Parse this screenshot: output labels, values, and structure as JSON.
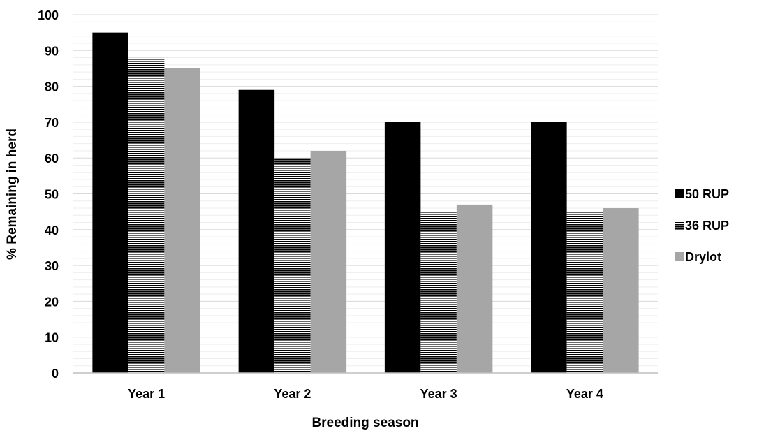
{
  "chart_data": {
    "type": "bar",
    "title": "",
    "xlabel": "Breeding season",
    "ylabel": "% Remaining in herd",
    "categories": [
      "Year 1",
      "Year 2",
      "Year 3",
      "Year 4"
    ],
    "ylim": [
      0,
      100
    ],
    "ytick_step": 10,
    "minor_grid_step": 2,
    "grid": true,
    "legend_position": "right",
    "series": [
      {
        "name": "50 RUP",
        "values": [
          95,
          79,
          70,
          70
        ],
        "color": "#000000",
        "pattern": "solid"
      },
      {
        "name": "36 RUP",
        "values": [
          88,
          60,
          45,
          45
        ],
        "color": "#000000",
        "pattern": "horizontal-lines"
      },
      {
        "name": "Drylot",
        "values": [
          85,
          62,
          47,
          46
        ],
        "color": "#a6a6a6",
        "pattern": "solid"
      }
    ],
    "colors": {
      "grid_major": "#d9d9d9",
      "grid_minor": "#eeeeee",
      "axis": "#bfbfbf"
    }
  }
}
